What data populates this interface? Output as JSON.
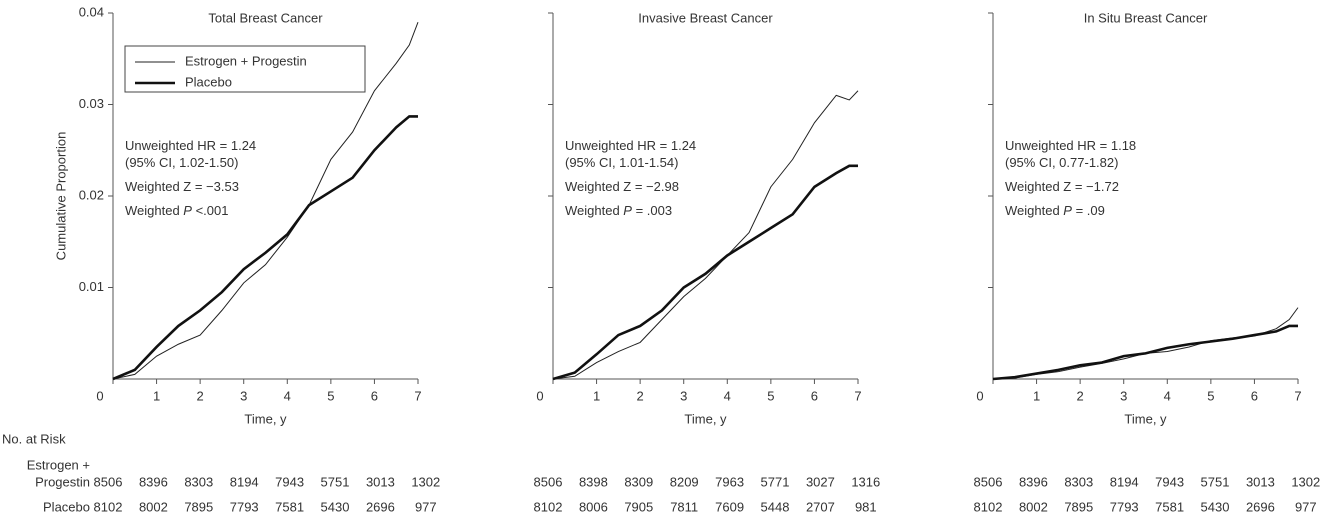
{
  "chart_data": [
    {
      "type": "line",
      "title": "Total Breast Cancer",
      "xlabel": "Time, y",
      "ylabel": "Cumulative Proportion",
      "xlim": [
        0,
        7
      ],
      "xticks": [
        0,
        1,
        2,
        3,
        4,
        5,
        6,
        7
      ],
      "ylim": [
        0,
        0.04
      ],
      "yticks": [
        0.01,
        0.02,
        0.03,
        0.04
      ],
      "ytick_labels": true,
      "legend": true,
      "x": [
        0,
        0.5,
        1,
        1.5,
        2,
        2.5,
        3,
        3.5,
        4,
        4.5,
        5,
        5.5,
        6,
        6.5,
        6.8,
        7
      ],
      "series": [
        {
          "name": "Estrogen + Progestin",
          "color": "#222222",
          "line_width": 1,
          "values": [
            0,
            0.0005,
            0.0025,
            0.0038,
            0.0048,
            0.0075,
            0.0105,
            0.0125,
            0.0155,
            0.019,
            0.024,
            0.027,
            0.0315,
            0.0345,
            0.0365,
            0.039
          ]
        },
        {
          "name": "Placebo",
          "color": "#111111",
          "line_width": 2.6,
          "values": [
            0,
            0.001,
            0.0035,
            0.0058,
            0.0075,
            0.0095,
            0.012,
            0.0138,
            0.0158,
            0.019,
            0.0205,
            0.022,
            0.025,
            0.0275,
            0.0287,
            0.0287
          ]
        }
      ],
      "annotations": [
        [
          "Unweighted HR = 1.24"
        ],
        [
          "(95% CI, 1.02-1.50)"
        ],
        [
          "Weighted Z = −3.53"
        ],
        [
          "Weighted ",
          "P",
          " <.001"
        ]
      ]
    },
    {
      "type": "line",
      "title": "Invasive Breast Cancer",
      "xlabel": "Time, y",
      "xlim": [
        0,
        7
      ],
      "xticks": [
        0,
        1,
        2,
        3,
        4,
        5,
        6,
        7
      ],
      "ylim": [
        0,
        0.04
      ],
      "yticks": [
        0.01,
        0.02,
        0.03,
        0.04
      ],
      "ytick_labels": false,
      "legend": false,
      "x": [
        0,
        0.5,
        1,
        1.5,
        2,
        2.5,
        3,
        3.5,
        4,
        4.5,
        5,
        5.5,
        6,
        6.5,
        6.8,
        7
      ],
      "series": [
        {
          "color": "#222222",
          "line_width": 1,
          "values": [
            0,
            0.0003,
            0.0018,
            0.003,
            0.004,
            0.0065,
            0.009,
            0.011,
            0.0135,
            0.016,
            0.021,
            0.024,
            0.028,
            0.031,
            0.0305,
            0.0315
          ]
        },
        {
          "color": "#111111",
          "line_width": 2.6,
          "values": [
            0,
            0.0007,
            0.0027,
            0.0048,
            0.0058,
            0.0075,
            0.01,
            0.0115,
            0.0135,
            0.015,
            0.0165,
            0.018,
            0.021,
            0.0225,
            0.0233,
            0.0233
          ]
        }
      ],
      "annotations": [
        [
          "Unweighted HR = 1.24"
        ],
        [
          "(95% CI, 1.01-1.54)"
        ],
        [
          "Weighted Z = −2.98"
        ],
        [
          "Weighted ",
          "P",
          " = .003"
        ]
      ]
    },
    {
      "type": "line",
      "title": "In Situ Breast Cancer",
      "xlabel": "Time, y",
      "xlim": [
        0,
        7
      ],
      "xticks": [
        0,
        1,
        2,
        3,
        4,
        5,
        6,
        7
      ],
      "ylim": [
        0,
        0.04
      ],
      "yticks": [
        0.01,
        0.02,
        0.03,
        0.04
      ],
      "ytick_labels": false,
      "legend": false,
      "x": [
        0,
        0.5,
        1,
        1.5,
        2,
        2.5,
        3,
        3.5,
        4,
        4.5,
        5,
        5.5,
        6,
        6.5,
        6.8,
        7
      ],
      "series": [
        {
          "color": "#222222",
          "line_width": 1,
          "values": [
            0,
            0.0001,
            0.0005,
            0.0008,
            0.0013,
            0.0017,
            0.0022,
            0.0028,
            0.003,
            0.0035,
            0.0042,
            0.0045,
            0.0047,
            0.0055,
            0.0065,
            0.0078
          ]
        },
        {
          "color": "#111111",
          "line_width": 2.6,
          "values": [
            0,
            0.0002,
            0.0006,
            0.001,
            0.0015,
            0.0018,
            0.0025,
            0.0028,
            0.0034,
            0.0038,
            0.0041,
            0.0044,
            0.0048,
            0.0052,
            0.0058,
            0.0058
          ]
        }
      ],
      "annotations": [
        [
          "Unweighted HR = 1.18"
        ],
        [
          "(95% CI, 0.77-1.82)"
        ],
        [
          "Weighted Z = −1.72"
        ],
        [
          "Weighted ",
          "P",
          " = .09"
        ]
      ]
    }
  ],
  "risk_table": {
    "title": "No. at Risk",
    "rows": [
      {
        "label": [
          "Estrogen +",
          "Progestin"
        ],
        "values": [
          [
            8506,
            8396,
            8303,
            8194,
            7943,
            5751,
            3013,
            1302
          ],
          [
            8506,
            8398,
            8309,
            8209,
            7963,
            5771,
            3027,
            1316
          ],
          [
            8506,
            8396,
            8303,
            8194,
            7943,
            5751,
            3013,
            1302
          ]
        ]
      },
      {
        "label": [
          "Placebo"
        ],
        "values": [
          [
            8102,
            8002,
            7895,
            7793,
            7581,
            5430,
            2696,
            977
          ],
          [
            8102,
            8006,
            7905,
            7811,
            7609,
            5448,
            2707,
            981
          ],
          [
            8102,
            8002,
            7895,
            7793,
            7581,
            5430,
            2696,
            977
          ]
        ]
      }
    ]
  }
}
